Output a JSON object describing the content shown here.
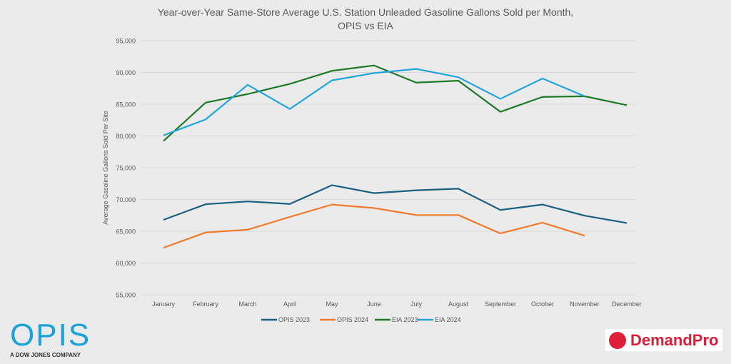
{
  "chart_data": {
    "type": "line",
    "title": "Year-over-Year Same-Store Average U.S. Station Unleaded Gasoline Gallons Sold per Month, OPIS vs EIA",
    "title_lines": [
      "Year-over-Year Same-Store Average U.S. Station Unleaded Gasoline Gallons Sold per Month,",
      "OPIS vs EIA"
    ],
    "xlabel": "",
    "ylabel": "Average  Gasoline Gallons Sold Per Site",
    "ylim": [
      55000,
      95000
    ],
    "yticks": [
      "55,000",
      "60,000",
      "65,000",
      "70,000",
      "75,000",
      "80,000",
      "85,000",
      "90,000",
      "95,000"
    ],
    "categories": [
      "January",
      "February",
      "March",
      "April",
      "May",
      "June",
      "July",
      "August",
      "September",
      "October",
      "November",
      "December"
    ],
    "grid": true,
    "legend": "bottom",
    "series": [
      {
        "name": "OPIS 2023",
        "color": "#1a5e80",
        "values": [
          66800,
          69250,
          69700,
          69300,
          72250,
          71000,
          71450,
          71700,
          68350,
          69200,
          67450,
          66300
        ]
      },
      {
        "name": "OPIS 2024",
        "color": "#f07a2c",
        "values": [
          62400,
          64800,
          65250,
          67250,
          69200,
          68650,
          67550,
          67550,
          64650,
          66350,
          64300,
          null
        ]
      },
      {
        "name": "EIA 2023",
        "color": "#1e7a27",
        "values": [
          79200,
          85250,
          86600,
          88200,
          90250,
          91100,
          88400,
          88700,
          83800,
          86150,
          86250,
          84850
        ]
      },
      {
        "name": "EIA 2024",
        "color": "#21a6d9",
        "values": [
          80100,
          82600,
          88050,
          84250,
          88750,
          89900,
          90550,
          89250,
          85850,
          89050,
          86250,
          null
        ]
      }
    ]
  },
  "logos": {
    "opis": "OPIS",
    "opis_sub": "A DOW JONES COMPANY",
    "demandpro": "DemandPro"
  }
}
